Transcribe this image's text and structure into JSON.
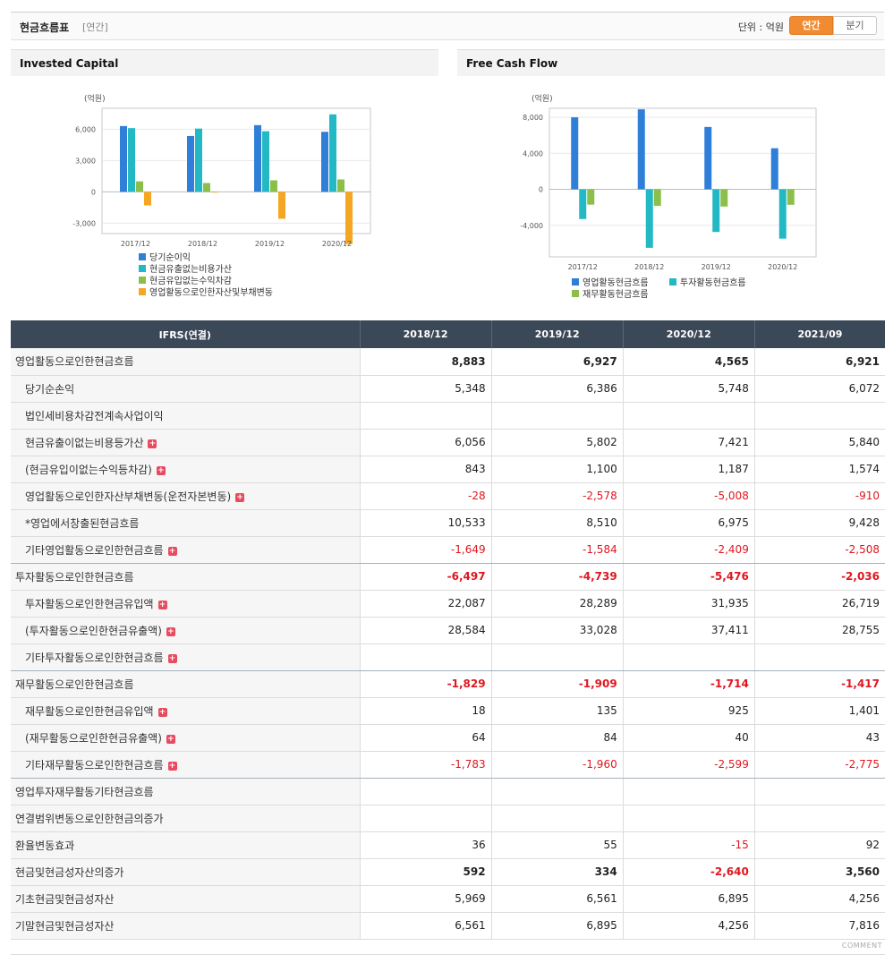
{
  "header": {
    "title": "현금흐름표",
    "period": "[연간]",
    "unit_label": "단위 : 억원",
    "toggle_annual": "연간",
    "toggle_quarter": "분기"
  },
  "colors": {
    "series1": "#2f7ed8",
    "series2": "#22b9c4",
    "series3": "#8cbf4a",
    "series4": "#f5a623",
    "negative": "#e0161f",
    "header_bg": "#3b4858"
  },
  "chart_data": [
    {
      "type": "bar",
      "title": "Invested Capital",
      "ylabel": "(억원)",
      "categories": [
        "2017/12",
        "2018/12",
        "2019/12",
        "2020/12"
      ],
      "ylim": [
        -4000,
        8000
      ],
      "yticks": [
        6000,
        3000,
        0,
        -3000
      ],
      "ytick_labels": [
        "6,000",
        "3,000",
        "0",
        "-3,000"
      ],
      "grid": true,
      "legend_position": "bottom",
      "series": [
        {
          "name": "당기순이익",
          "values": [
            6300,
            5348,
            6386,
            5748
          ]
        },
        {
          "name": "현금유출없는비용가산",
          "values": [
            6100,
            6056,
            5802,
            7421
          ]
        },
        {
          "name": "현금유입없는수익차감",
          "values": [
            1000,
            843,
            1100,
            1187
          ]
        },
        {
          "name": "영업활동으로인한자산및부채변동",
          "values": [
            -1300,
            -28,
            -2578,
            -5008
          ]
        }
      ]
    },
    {
      "type": "bar",
      "title": "Free Cash Flow",
      "ylabel": "(억원)",
      "categories": [
        "2017/12",
        "2018/12",
        "2019/12",
        "2020/12"
      ],
      "ylim": [
        -7500,
        9000
      ],
      "yticks": [
        8000,
        4000,
        0,
        -4000
      ],
      "ytick_labels": [
        "8,000",
        "4,000",
        "0",
        "-4,000"
      ],
      "grid": true,
      "legend_position": "bottom",
      "series": [
        {
          "name": "영업활동현금흐름",
          "values": [
            8000,
            8883,
            6927,
            4565
          ]
        },
        {
          "name": "투자활동현금흐름",
          "values": [
            -3300,
            -6497,
            -4739,
            -5476
          ]
        },
        {
          "name": "재무활동현금흐름",
          "values": [
            -1700,
            -1829,
            -1909,
            -1714
          ]
        }
      ]
    }
  ],
  "table": {
    "header_label": "IFRS(연결)",
    "columns": [
      "2018/12",
      "2019/12",
      "2020/12",
      "2021/09"
    ],
    "rows": [
      {
        "label": "영업활동으로인한현금흐름",
        "values": [
          "8,883",
          "6,927",
          "4,565",
          "6,921"
        ],
        "bold": true,
        "sub": false,
        "plus": false,
        "major": false
      },
      {
        "label": "당기순손익",
        "values": [
          "5,348",
          "6,386",
          "5,748",
          "6,072"
        ],
        "bold": false,
        "sub": true,
        "plus": false,
        "major": false
      },
      {
        "label": "법인세비용차감전계속사업이익",
        "values": [
          "",
          "",
          "",
          ""
        ],
        "bold": false,
        "sub": true,
        "plus": false,
        "major": false
      },
      {
        "label": "현금유출이없는비용등가산",
        "values": [
          "6,056",
          "5,802",
          "7,421",
          "5,840"
        ],
        "bold": false,
        "sub": true,
        "plus": true,
        "major": false
      },
      {
        "label": "(현금유입이없는수익등차감)",
        "values": [
          "843",
          "1,100",
          "1,187",
          "1,574"
        ],
        "bold": false,
        "sub": true,
        "plus": true,
        "major": false
      },
      {
        "label": "영업활동으로인한자산부채변동(운전자본변동)",
        "values": [
          "-28",
          "-2,578",
          "-5,008",
          "-910"
        ],
        "bold": false,
        "sub": true,
        "plus": true,
        "major": false
      },
      {
        "label": "*영업에서창출된현금흐름",
        "values": [
          "10,533",
          "8,510",
          "6,975",
          "9,428"
        ],
        "bold": false,
        "sub": true,
        "plus": false,
        "major": false
      },
      {
        "label": "기타영업활동으로인한현금흐름",
        "values": [
          "-1,649",
          "-1,584",
          "-2,409",
          "-2,508"
        ],
        "bold": false,
        "sub": true,
        "plus": true,
        "major": true
      },
      {
        "label": "투자활동으로인한현금흐름",
        "values": [
          "-6,497",
          "-4,739",
          "-5,476",
          "-2,036"
        ],
        "bold": true,
        "sub": false,
        "plus": false,
        "major": false
      },
      {
        "label": "투자활동으로인한현금유입액",
        "values": [
          "22,087",
          "28,289",
          "31,935",
          "26,719"
        ],
        "bold": false,
        "sub": true,
        "plus": true,
        "major": false
      },
      {
        "label": "(투자활동으로인한현금유출액)",
        "values": [
          "28,584",
          "33,028",
          "37,411",
          "28,755"
        ],
        "bold": false,
        "sub": true,
        "plus": true,
        "major": false
      },
      {
        "label": "기타투자활동으로인한현금흐름",
        "values": [
          "",
          "",
          "",
          ""
        ],
        "bold": false,
        "sub": true,
        "plus": true,
        "major": true
      },
      {
        "label": "재무활동으로인한현금흐름",
        "values": [
          "-1,829",
          "-1,909",
          "-1,714",
          "-1,417"
        ],
        "bold": true,
        "sub": false,
        "plus": false,
        "major": false
      },
      {
        "label": "재무활동으로인한현금유입액",
        "values": [
          "18",
          "135",
          "925",
          "1,401"
        ],
        "bold": false,
        "sub": true,
        "plus": true,
        "major": false
      },
      {
        "label": "(재무활동으로인한현금유출액)",
        "values": [
          "64",
          "84",
          "40",
          "43"
        ],
        "bold": false,
        "sub": true,
        "plus": true,
        "major": false
      },
      {
        "label": "기타재무활동으로인한현금흐름",
        "values": [
          "-1,783",
          "-1,960",
          "-2,599",
          "-2,775"
        ],
        "bold": false,
        "sub": true,
        "plus": true,
        "major": true
      },
      {
        "label": "영업투자재무활동기타현금흐름",
        "values": [
          "",
          "",
          "",
          ""
        ],
        "bold": false,
        "sub": false,
        "plus": false,
        "major": false
      },
      {
        "label": "연결범위변동으로인한현금의증가",
        "values": [
          "",
          "",
          "",
          ""
        ],
        "bold": false,
        "sub": false,
        "plus": false,
        "major": false
      },
      {
        "label": "환율변동효과",
        "values": [
          "36",
          "55",
          "-15",
          "92"
        ],
        "bold": false,
        "sub": false,
        "plus": false,
        "major": false
      },
      {
        "label": "현금및현금성자산의증가",
        "values": [
          "592",
          "334",
          "-2,640",
          "3,560"
        ],
        "bold": true,
        "sub": false,
        "plus": false,
        "major": false
      },
      {
        "label": "기초현금및현금성자산",
        "values": [
          "5,969",
          "6,561",
          "6,895",
          "4,256"
        ],
        "bold": false,
        "sub": false,
        "plus": false,
        "major": false
      },
      {
        "label": "기말현금및현금성자산",
        "values": [
          "6,561",
          "6,895",
          "4,256",
          "7,816"
        ],
        "bold": false,
        "sub": false,
        "plus": false,
        "major": false
      }
    ]
  },
  "footer": {
    "comment": "COMMENT"
  }
}
